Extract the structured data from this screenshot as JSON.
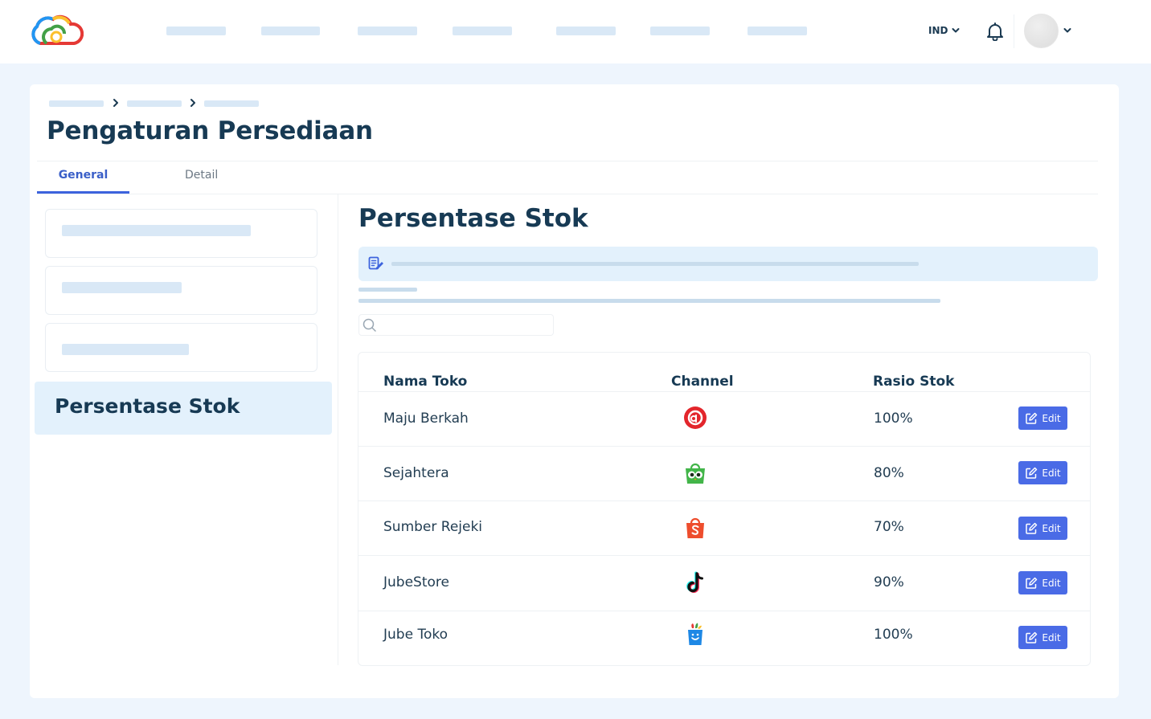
{
  "header": {
    "language": "IND",
    "logo": "cloud-logo",
    "nav_item_count": 7
  },
  "page": {
    "title": "Pengaturan Persediaan",
    "tabs": [
      {
        "label": "General",
        "active": true
      },
      {
        "label": "Detail",
        "active": false
      }
    ]
  },
  "sidebar": {
    "active_item": "Persentase Stok"
  },
  "section": {
    "title": "Persentase Stok",
    "info_icon": "edit-document-icon",
    "search_placeholder": ""
  },
  "table": {
    "columns": [
      "Nama Toko",
      "Channel",
      "Rasio Stok",
      ""
    ],
    "rows": [
      {
        "name": "Maju Berkah",
        "channel": "blibli-icon",
        "ratio": "100%",
        "action": "Edit"
      },
      {
        "name": "Sejahtera",
        "channel": "tokopedia-icon",
        "ratio": "80%",
        "action": "Edit"
      },
      {
        "name": "Sumber Rejeki",
        "channel": "shopee-icon",
        "ratio": "70%",
        "action": "Edit"
      },
      {
        "name": "JubeStore",
        "channel": "tiktok-icon",
        "ratio": "90%",
        "action": "Edit"
      },
      {
        "name": "Jube Toko",
        "channel": "jube-icon",
        "ratio": "100%",
        "action": "Edit"
      }
    ]
  },
  "colors": {
    "accent": "#4a6be6",
    "title": "#173a54",
    "highlight_bg": "#e3f1fc",
    "page_bg": "#eef5fd"
  }
}
